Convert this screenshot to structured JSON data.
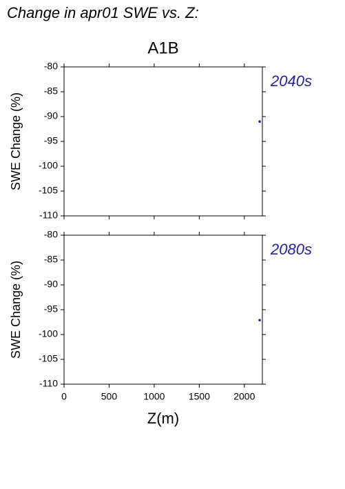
{
  "header": {
    "title": "Change in apr01 SWE vs. Z:",
    "subtitle": "A1B"
  },
  "chart_data": [
    {
      "type": "scatter",
      "label": "2040s",
      "ylabel": "SWE Change (%)",
      "color": "#2222a0",
      "x": [
        2170
      ],
      "values": [
        -91
      ],
      "xlim": [
        0,
        2200
      ],
      "ylim": [
        -80,
        -110
      ],
      "xticks": [
        0,
        500,
        1000,
        1500,
        2000
      ],
      "yticks": [
        -80,
        -85,
        -90,
        -95,
        -100,
        -105,
        -110
      ]
    },
    {
      "type": "scatter",
      "label": "2080s",
      "ylabel": "SWE Change (%)",
      "xlabel": "Z(m)",
      "color": "#2222a0",
      "x": [
        2170
      ],
      "values": [
        -97.1
      ],
      "xlim": [
        0,
        2200
      ],
      "ylim": [
        -80,
        -110
      ],
      "xticks": [
        0,
        500,
        1000,
        1500,
        2000
      ],
      "yticks": [
        -80,
        -85,
        -90,
        -95,
        -100,
        -105,
        -110
      ]
    }
  ]
}
